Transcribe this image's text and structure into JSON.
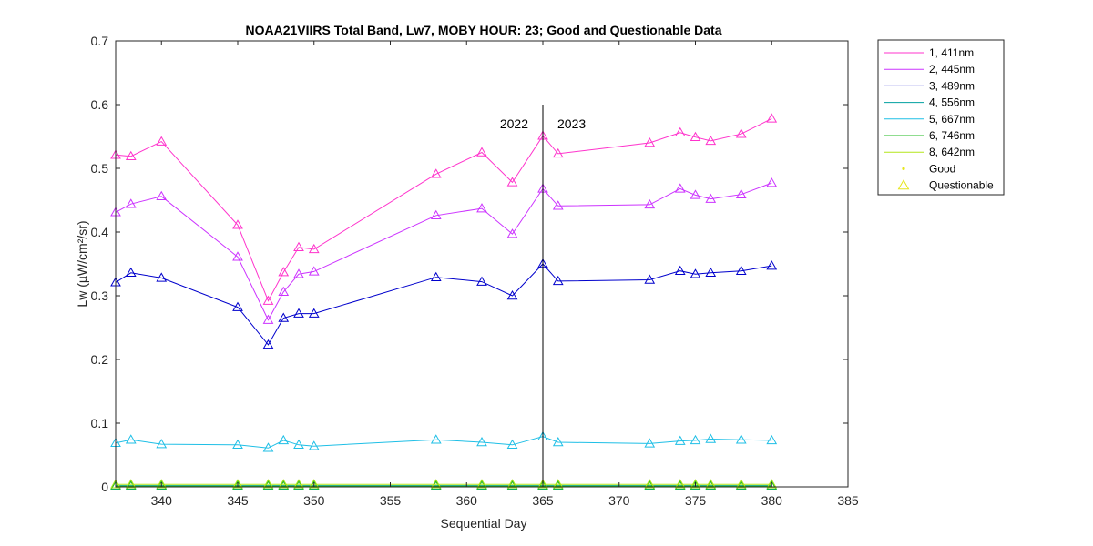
{
  "chart_data": {
    "type": "line",
    "title": "NOAA21VIIRS Total Band,  Lw7, MOBY HOUR: 23;  Good and Questionable Data",
    "xlabel": "Sequential Day",
    "ylabel": "Lw (µW/cm²/sr)",
    "xlim": [
      337,
      385
    ],
    "ylim": [
      0,
      0.7
    ],
    "xticks": [
      340,
      345,
      350,
      355,
      360,
      365,
      370,
      375,
      380,
      385
    ],
    "yticks": [
      0,
      0.1,
      0.2,
      0.3,
      0.4,
      0.5,
      0.6,
      0.7
    ],
    "grid": false,
    "legend_position": "outside-top-right",
    "x": [
      337,
      338,
      340,
      345,
      347,
      348,
      349,
      350,
      358,
      361,
      363,
      365,
      366,
      372,
      374,
      375,
      376,
      378,
      380
    ],
    "series": [
      {
        "name": "1, 411nm",
        "color": "#ff33cc",
        "values": [
          0.521,
          0.519,
          0.542,
          0.411,
          0.292,
          0.337,
          0.376,
          0.373,
          0.491,
          0.525,
          0.478,
          0.551,
          0.523,
          0.54,
          0.556,
          0.549,
          0.543,
          0.554,
          0.578
        ]
      },
      {
        "name": "2, 445nm",
        "color": "#cc33ff",
        "values": [
          0.431,
          0.444,
          0.456,
          0.361,
          0.262,
          0.306,
          0.334,
          0.338,
          0.426,
          0.437,
          0.397,
          0.468,
          0.441,
          0.443,
          0.468,
          0.458,
          0.452,
          0.459,
          0.477
        ]
      },
      {
        "name": "3, 489nm",
        "color": "#0000cc",
        "values": [
          0.321,
          0.336,
          0.328,
          0.282,
          0.223,
          0.265,
          0.272,
          0.272,
          0.329,
          0.322,
          0.3,
          0.35,
          0.323,
          0.325,
          0.339,
          0.334,
          0.336,
          0.339,
          0.347
        ]
      },
      {
        "name": "4, 556nm",
        "color": "#00a0a0",
        "values": [
          0.002,
          0.002,
          0.002,
          0.002,
          0.002,
          0.002,
          0.002,
          0.002,
          0.002,
          0.002,
          0.002,
          0.002,
          0.002,
          0.002,
          0.002,
          0.002,
          0.002,
          0.002,
          0.002
        ]
      },
      {
        "name": "5, 667nm",
        "color": "#1fbfe6",
        "values": [
          0.069,
          0.074,
          0.067,
          0.066,
          0.061,
          0.073,
          0.066,
          0.064,
          0.074,
          0.07,
          0.066,
          0.079,
          0.07,
          0.068,
          0.072,
          0.073,
          0.075,
          0.074,
          0.073
        ]
      },
      {
        "name": "6, 746nm",
        "color": "#22bb22",
        "values": [
          0.001,
          0.001,
          0.001,
          0.001,
          0.001,
          0.001,
          0.001,
          0.001,
          0.001,
          0.001,
          0.001,
          0.001,
          0.001,
          0.001,
          0.001,
          0.001,
          0.001,
          0.001,
          0.001
        ]
      },
      {
        "name": "8, 642nm",
        "color": "#b3e61a",
        "values": [
          0.004,
          0.004,
          0.004,
          0.004,
          0.004,
          0.004,
          0.004,
          0.004,
          0.004,
          0.004,
          0.004,
          0.004,
          0.004,
          0.004,
          0.004,
          0.004,
          0.004,
          0.004,
          0.004
        ]
      }
    ],
    "legend_markers": [
      {
        "name": "Good",
        "symbol": "dot",
        "color": "#e6e61a"
      },
      {
        "name": "Questionable",
        "symbol": "triangle",
        "color": "#e6e61a"
      }
    ],
    "year_divider": {
      "x": 365,
      "y_top": 0.6,
      "left_label": "2022",
      "right_label": "2023",
      "label_y": 0.57
    }
  }
}
